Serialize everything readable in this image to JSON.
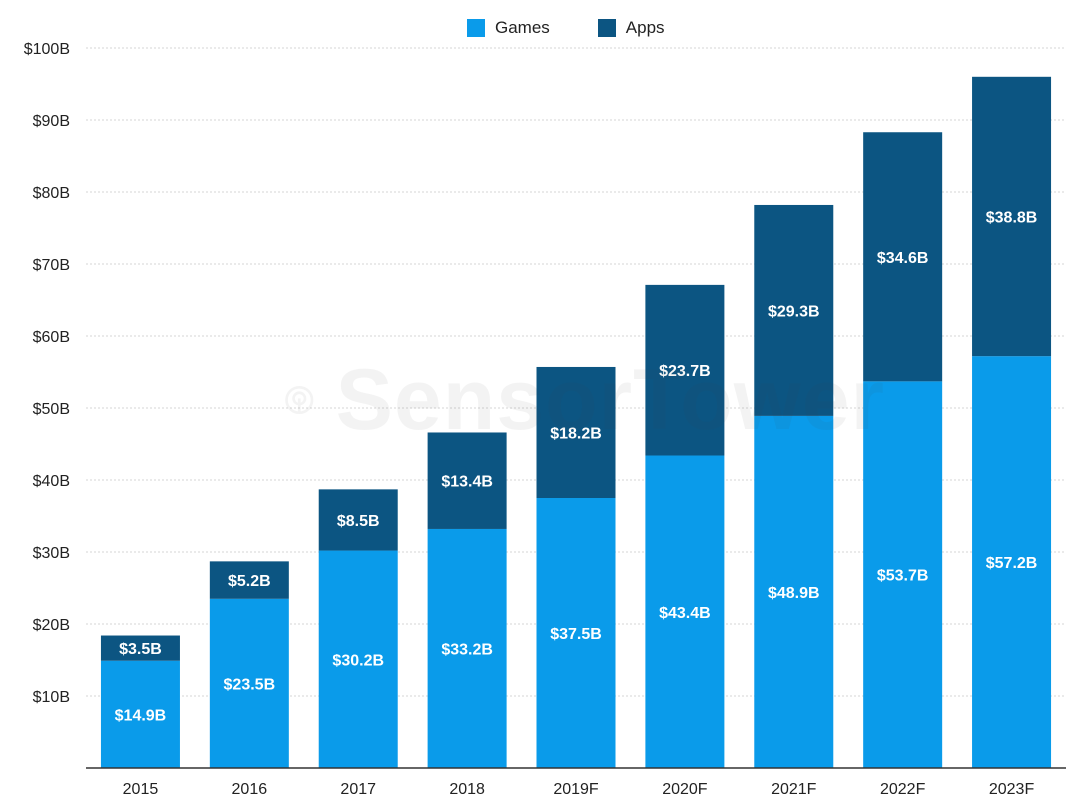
{
  "chart_data": {
    "type": "bar",
    "stacked": true,
    "title": "",
    "xlabel": "",
    "ylabel": "",
    "ylim": [
      0,
      100
    ],
    "yticks": [
      10,
      20,
      30,
      40,
      50,
      60,
      70,
      80,
      90,
      100
    ],
    "ytick_labels": [
      "$10B",
      "$20B",
      "$30B",
      "$40B",
      "$50B",
      "$60B",
      "$70B",
      "$80B",
      "$90B",
      "$100B"
    ],
    "categories": [
      "2015",
      "2016",
      "2017",
      "2018",
      "2019F",
      "2020F",
      "2021F",
      "2022F",
      "2023F"
    ],
    "legend_position": "top-center",
    "grid": true,
    "series": [
      {
        "name": "Games",
        "color": "#0a9bea",
        "values": [
          14.9,
          23.5,
          30.2,
          33.2,
          37.5,
          43.4,
          48.9,
          53.7,
          57.2
        ],
        "labels": [
          "$14.9B",
          "$23.5B",
          "$30.2B",
          "$33.2B",
          "$37.5B",
          "$43.4B",
          "$48.9B",
          "$53.7B",
          "$57.2B"
        ]
      },
      {
        "name": "Apps",
        "color": "#0c5582",
        "values": [
          3.5,
          5.2,
          8.5,
          13.4,
          18.2,
          23.7,
          29.3,
          34.6,
          38.8
        ],
        "labels": [
          "$3.5B",
          "$5.2B",
          "$8.5B",
          "$13.4B",
          "$18.2B",
          "$23.7B",
          "$29.3B",
          "$34.6B",
          "$38.8B"
        ]
      }
    ]
  },
  "watermark": {
    "text": "SensorTower"
  }
}
